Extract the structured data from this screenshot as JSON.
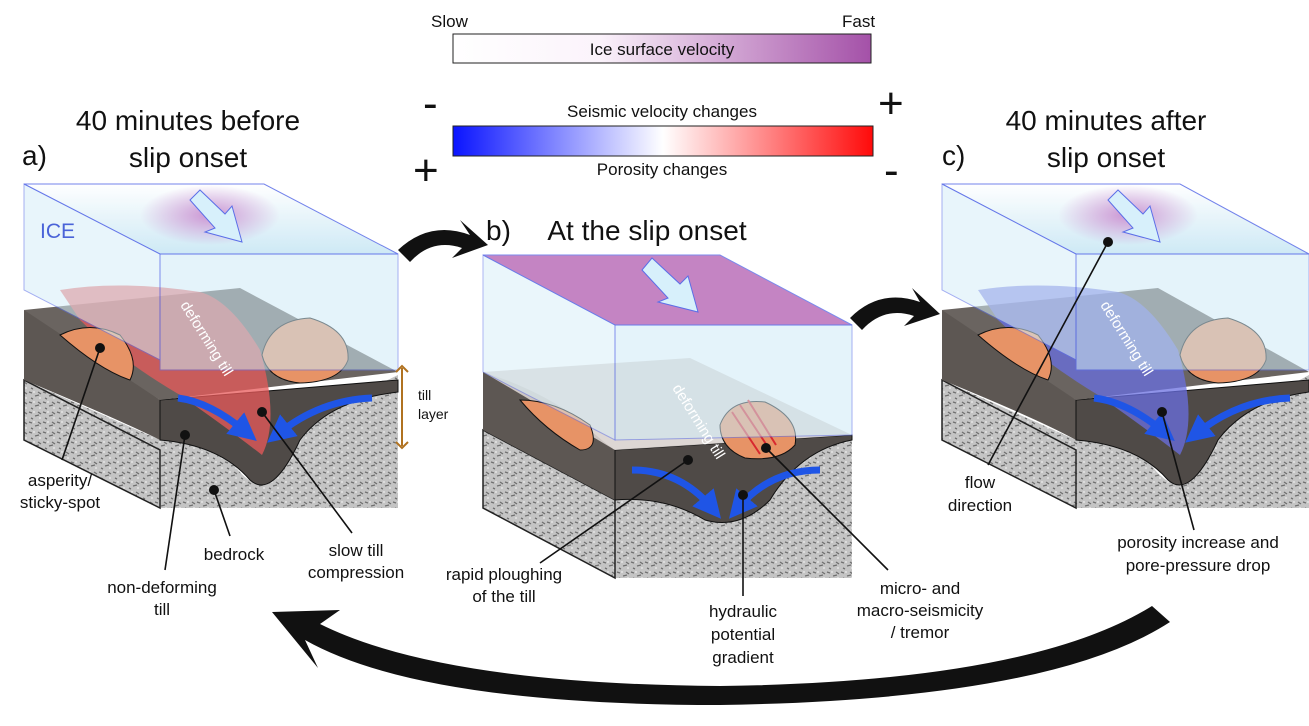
{
  "legend": {
    "ice_velocity": {
      "low": "Slow",
      "high": "Fast",
      "title": "Ice surface velocity",
      "colors": [
        "#ffffff",
        "#a451a8"
      ]
    },
    "seismic": {
      "title_top": "Seismic velocity changes",
      "title_bottom": "Porosity changes",
      "top_left_sign": "-",
      "top_right_sign": "+",
      "bottom_left_sign": "+",
      "bottom_right_sign": "-",
      "colors": [
        "#0a14ff",
        "#ffffff",
        "#ff0a0a"
      ]
    }
  },
  "panels": {
    "a": {
      "letter": "a)",
      "title_line1": "40 minutes before",
      "title_line2": "slip onset",
      "ice_label": "ICE",
      "deforming": "deforming till",
      "till_layer_line1": "till",
      "till_layer_line2": "layer"
    },
    "b": {
      "letter": "b)",
      "title": "At the slip onset",
      "deforming": "deforming till"
    },
    "c": {
      "letter": "c)",
      "title_line1": "40 minutes after",
      "title_line2": "slip onset",
      "deforming": "deforming till"
    }
  },
  "labels": {
    "asperity_1": "asperity/",
    "asperity_2": "sticky-spot",
    "nondeforming_1": "non-deforming",
    "nondeforming_2": "till",
    "bedrock": "bedrock",
    "slow_1": "slow till",
    "slow_2": "compression",
    "ploughing_1": "rapid ploughing",
    "ploughing_2": "of the till",
    "hydraulic_1": "hydraulic",
    "hydraulic_2": "potential",
    "hydraulic_3": "gradient",
    "seismicity_1": "micro- and",
    "seismicity_2": "macro-seismicity",
    "seismicity_3": "/ tremor",
    "flow_1": "flow",
    "flow_2": "direction",
    "porosity_1": "porosity increase and",
    "porosity_2": "pore-pressure drop"
  },
  "colors": {
    "ice": "#cfeaf6",
    "till": "#5a5450",
    "bedrock": "#bdbdbd",
    "asperity": "#e79366",
    "flow_arrow": "#1f55e6",
    "red_zone": "#e85a5a",
    "blue_zone": "#6a6fe0"
  }
}
